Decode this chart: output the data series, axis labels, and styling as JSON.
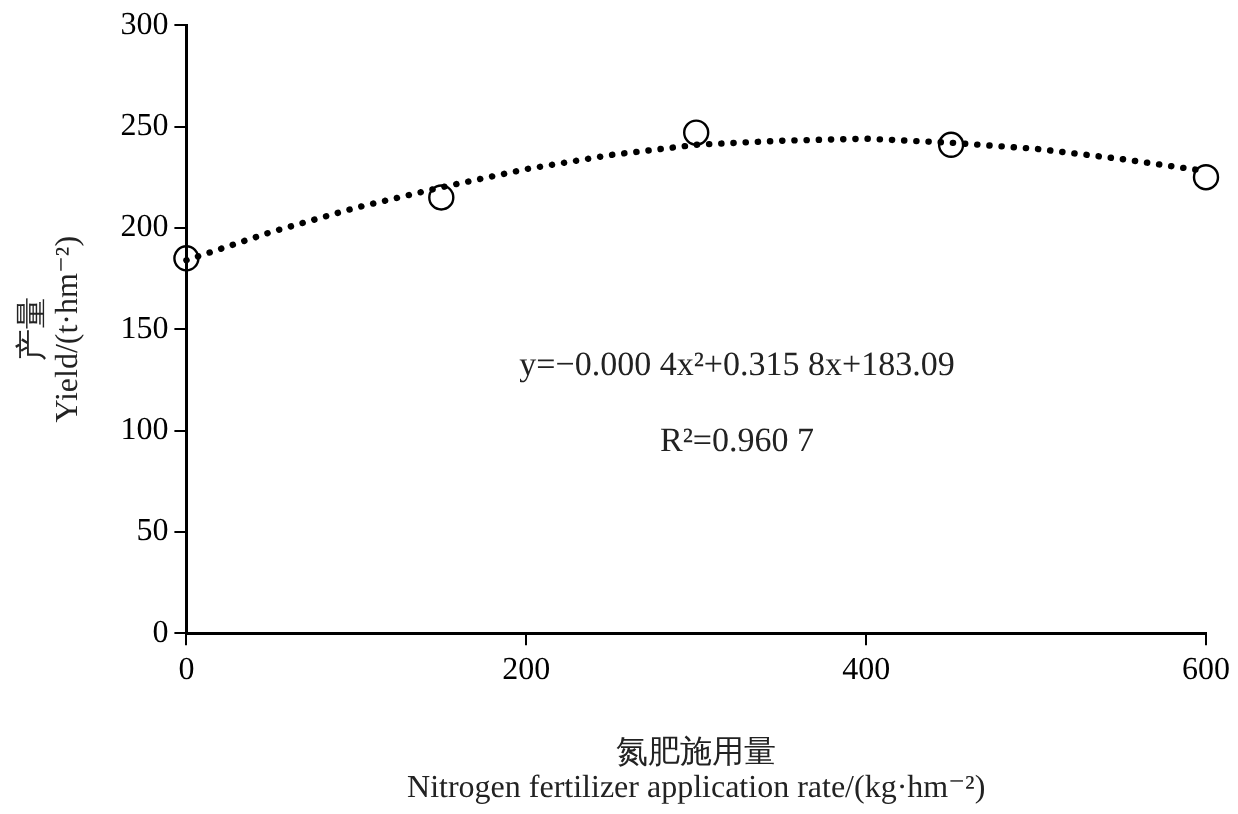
{
  "chart_data": {
    "type": "scatter",
    "xlabel": "氮肥施用量\nNitrogen fertilizer application rate/(kg·hm⁻²)",
    "ylabel": "产量\nYield/(t·hm⁻²)",
    "xlim": [
      0,
      600
    ],
    "xticks": [
      0,
      200,
      400,
      600
    ],
    "ylim": [
      0,
      300
    ],
    "yticks": [
      0,
      50,
      100,
      150,
      200,
      250,
      300
    ],
    "grid": false,
    "legend": false,
    "series": [
      {
        "type": "scatter",
        "color": "#000000",
        "marker": "circle",
        "x": [
          0,
          150,
          300,
          450,
          600
        ],
        "values": [
          185,
          215,
          247,
          241,
          225
        ]
      },
      {
        "type": "line",
        "color": "#000000",
        "marker": "none",
        "line_style": "dotted",
        "x": [
          0,
          50,
          100,
          150,
          200,
          250,
          300,
          350,
          400,
          450,
          500,
          550,
          600
        ],
        "values": [
          184,
          198,
          210,
          220,
          229,
          236,
          241,
          243,
          244,
          242,
          239,
          234,
          228
        ]
      }
    ],
    "annotations": [
      "y=−0.000 4x²+0.315 8x+183.09",
      "R²=0.960 7"
    ]
  }
}
